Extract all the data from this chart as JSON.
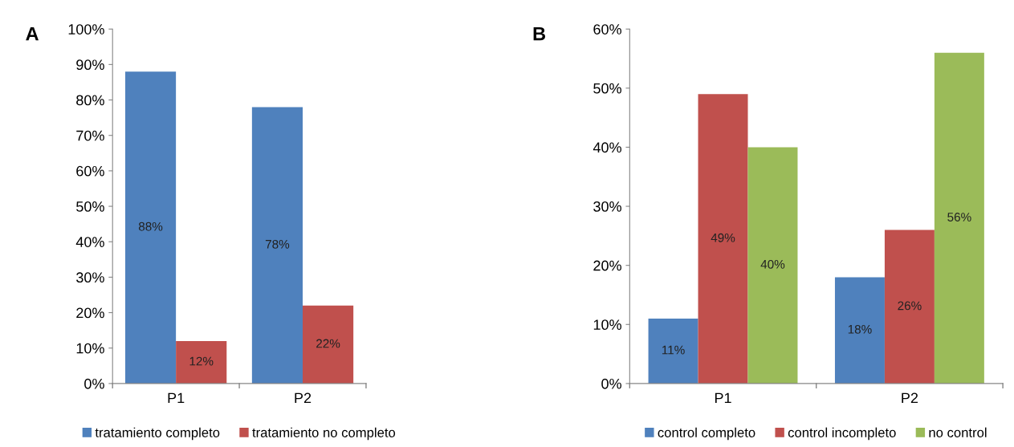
{
  "chart_data": [
    {
      "type": "bar",
      "title": "A",
      "categories": [
        "P1",
        "P2"
      ],
      "series": [
        {
          "name": "tratamiento completo",
          "color": "#4f81bd",
          "values": [
            88,
            78
          ],
          "value_labels": [
            "88%",
            "78%"
          ]
        },
        {
          "name": "tratamiento no completo",
          "color": "#c0504d",
          "values": [
            12,
            22
          ],
          "value_labels": [
            "12%",
            "22%"
          ]
        }
      ],
      "ylim": [
        0,
        100
      ],
      "yticks": [
        {
          "value": 0,
          "label": "0%"
        },
        {
          "value": 10,
          "label": "10%"
        },
        {
          "value": 20,
          "label": "20%"
        },
        {
          "value": 30,
          "label": "30%"
        },
        {
          "value": 40,
          "label": "40%"
        },
        {
          "value": 50,
          "label": "50%"
        },
        {
          "value": 60,
          "label": "60%"
        },
        {
          "value": 70,
          "label": "70%"
        },
        {
          "value": 80,
          "label": "80%"
        },
        {
          "value": 90,
          "label": "90%"
        },
        {
          "value": 100,
          "label": "100%"
        }
      ],
      "grid": false,
      "legend": "bottom"
    },
    {
      "type": "bar",
      "title": "B",
      "categories": [
        "P1",
        "P2"
      ],
      "series": [
        {
          "name": "control completo",
          "color": "#4f81bd",
          "values": [
            11,
            18
          ],
          "value_labels": [
            "11%",
            "18%"
          ]
        },
        {
          "name": "control incompleto",
          "color": "#c0504d",
          "values": [
            49,
            26
          ],
          "value_labels": [
            "49%",
            "26%"
          ]
        },
        {
          "name": "no control",
          "color": "#9bbb59",
          "values": [
            40,
            56
          ],
          "value_labels": [
            "40%",
            "56%"
          ]
        }
      ],
      "ylim": [
        0,
        60
      ],
      "yticks": [
        {
          "value": 0,
          "label": "0%"
        },
        {
          "value": 10,
          "label": "10%"
        },
        {
          "value": 20,
          "label": "20%"
        },
        {
          "value": 30,
          "label": "30%"
        },
        {
          "value": 40,
          "label": "40%"
        },
        {
          "value": 50,
          "label": "50%"
        },
        {
          "value": 60,
          "label": "60%"
        }
      ],
      "grid": false,
      "legend": "bottom"
    }
  ]
}
